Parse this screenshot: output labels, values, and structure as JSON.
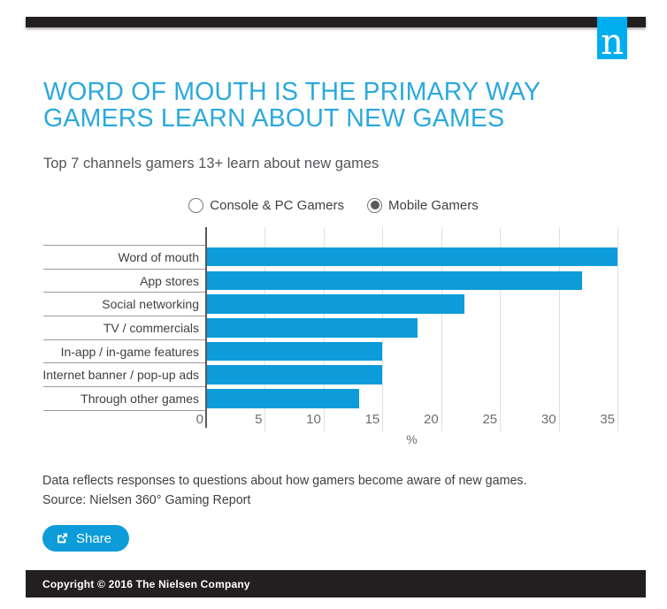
{
  "brand": {
    "logo_letter": "n",
    "logo_color": "#00aeef",
    "bar_color": "#231f20"
  },
  "header": {
    "title_line1": "WORD OF MOUTH IS THE PRIMARY WAY",
    "title_line2": "GAMERS LEARN ABOUT NEW GAMES",
    "title_color": "#2ba9dc",
    "subtitle": "Top 7 channels gamers 13+ learn about new games"
  },
  "legend": {
    "options": [
      {
        "label": "Console & PC Gamers",
        "selected": false
      },
      {
        "label": "Mobile Gamers",
        "selected": true
      }
    ]
  },
  "chart_data": {
    "type": "bar",
    "orientation": "horizontal",
    "title": "Top 7 channels gamers 13+ learn about new games",
    "series_name": "Mobile Gamers",
    "categories": [
      "Word of mouth",
      "App stores",
      "Social networking",
      "TV / commercials",
      "In-app / in-game features",
      "Internet banner / pop-up ads",
      "Through other games"
    ],
    "values": [
      35,
      32,
      22,
      18,
      15,
      15,
      13
    ],
    "xlabel": "%",
    "xlim": [
      0,
      35
    ],
    "xticks": [
      0,
      5,
      10,
      15,
      20,
      25,
      30,
      35
    ],
    "grid": true,
    "legend_position": "top",
    "bar_color": "#0d9cd9"
  },
  "footnote": {
    "line1": "Data reflects responses to questions about how gamers become aware of new games.",
    "line2": "Source: Nielsen 360° Gaming Report"
  },
  "share": {
    "label": "Share"
  },
  "footer": {
    "copyright": "Copyright © 2016 The Nielsen Company"
  }
}
